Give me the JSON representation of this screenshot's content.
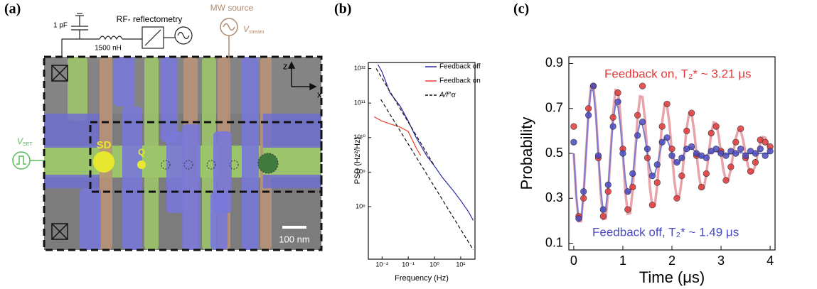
{
  "panel_labels": [
    "(a)",
    "(b)",
    "(c)"
  ],
  "panel_a": {
    "capacitor": "1 pF",
    "rf": "RF- reflectometry",
    "inductor": "1500 nH",
    "mw": "MW source",
    "v_stream": {
      "symbol": "V",
      "subscript": "stream"
    },
    "v_set": {
      "symbol": "V",
      "subscript": "SET"
    },
    "sd": "SD",
    "q": "Q",
    "axis_z": "z",
    "axis_x": "x",
    "scale": "100 nm"
  },
  "chart_data": [
    {
      "type": "line",
      "xscale": "log",
      "yscale": "log",
      "xlabel": "Frequency (Hz)",
      "ylabel": "PSD (Hz²/Hz)",
      "legend": "upper right",
      "xlim": [
        0.003,
        35
      ],
      "ylim": [
        3000000,
        1500000000000
      ],
      "xticks": [
        {
          "value": 0.01,
          "label": "10⁻²"
        },
        {
          "value": 0.1,
          "label": "10⁻¹"
        },
        {
          "value": 1,
          "label": "10⁰"
        },
        {
          "value": 10,
          "label": "10¹"
        }
      ],
      "yticks": [
        {
          "value": 100000000,
          "label": "10⁸"
        },
        {
          "value": 1000000000,
          "label": "10⁹"
        },
        {
          "value": 10000000000,
          "label": "10¹⁰"
        },
        {
          "value": 100000000000,
          "label": "10¹¹"
        },
        {
          "value": 1000000000000,
          "label": "10¹²"
        }
      ],
      "series": [
        {
          "name": "Feedback off",
          "color": "#2a2aa8",
          "x": [
            0.007,
            0.01,
            0.02,
            0.05,
            0.1,
            0.2,
            0.5,
            1,
            2,
            5,
            10,
            20,
            30
          ],
          "values": [
            1300000000000,
            800000000000,
            200000000000,
            80000000000,
            30000000000,
            10000000000,
            3000000000,
            1500000000,
            700000000,
            300000000,
            150000000,
            70000000,
            40000000
          ]
        },
        {
          "name": "Feedback on",
          "color": "#e8402a",
          "x": [
            0.005,
            0.01,
            0.02,
            0.05,
            0.1,
            0.2,
            0.3
          ],
          "values": [
            40000000000,
            30000000000,
            25000000000,
            20000000000,
            15000000000,
            5000000000,
            3000000000
          ]
        },
        {
          "name": "A/f^α",
          "color": "#111111",
          "dash": true,
          "x": [
            0.009,
            30
          ],
          "values": [
            127000000000,
            5600000
          ]
        },
        {
          "color": "#111111",
          "dash": true,
          "x": [
            0.006,
            1
          ],
          "values": [
            1000000000000,
            1500000000
          ]
        }
      ]
    },
    {
      "type": "line",
      "xlabel": "Time (μs)",
      "ylabel": "Probability",
      "xlim": [
        -0.1,
        4.1
      ],
      "ylim": [
        0.07,
        0.93
      ],
      "xticks": [
        0,
        1,
        2,
        3,
        4
      ],
      "yticks": [
        0.1,
        0.3,
        0.5,
        0.7,
        0.9
      ],
      "series": [
        {
          "name": "Feedback on, T₂* ~ 3.21 μs",
          "mode": "line",
          "color": "#e8a3ab",
          "x": [
            0,
            0.05,
            0.1,
            0.15,
            0.2,
            0.25,
            0.3,
            0.35,
            0.4,
            0.45,
            0.5,
            0.55,
            0.6,
            0.65,
            0.7,
            0.75,
            0.8,
            0.85,
            0.9,
            0.95,
            1,
            1.05,
            1.1,
            1.15,
            1.2,
            1.25,
            1.3,
            1.35,
            1.4,
            1.45,
            1.5,
            1.55,
            1.6,
            1.65,
            1.7,
            1.75,
            1.8,
            1.85,
            1.9,
            1.95,
            2,
            2.05,
            2.1,
            2.15,
            2.2,
            2.25,
            2.3,
            2.35,
            2.4,
            2.45,
            2.5,
            2.55,
            2.6,
            2.65,
            2.7,
            2.75,
            2.8,
            2.85,
            2.9,
            2.95,
            3,
            3.05,
            3.1,
            3.15,
            3.2,
            3.25,
            3.3,
            3.35,
            3.4,
            3.45,
            3.5,
            3.55,
            3.6,
            3.65,
            3.7,
            3.75,
            3.8,
            3.85,
            3.9,
            3.95,
            4
          ],
          "values": [
            0.5,
            0.312,
            0.198,
            0.198,
            0.314,
            0.5,
            0.685,
            0.799,
            0.798,
            0.684,
            0.5,
            0.318,
            0.207,
            0.21,
            0.322,
            0.5,
            0.676,
            0.782,
            0.78,
            0.672,
            0.5,
            0.331,
            0.231,
            0.234,
            0.337,
            0.5,
            0.659,
            0.754,
            0.751,
            0.653,
            0.5,
            0.351,
            0.263,
            0.267,
            0.358,
            0.5,
            0.637,
            0.718,
            0.714,
            0.63,
            0.5,
            0.375,
            0.302,
            0.306,
            0.382,
            0.5,
            0.612,
            0.678,
            0.674,
            0.605,
            0.5,
            0.4,
            0.342,
            0.346,
            0.407,
            0.5,
            0.588,
            0.638,
            0.634,
            0.581,
            0.5,
            0.424,
            0.38,
            0.383,
            0.43,
            0.5,
            0.566,
            0.604,
            0.6,
            0.56,
            0.5,
            0.444,
            0.413,
            0.415,
            0.449,
            0.5,
            0.547,
            0.573,
            0.57,
            0.542,
            0.5
          ]
        },
        {
          "name": "Feedback off, T₂* ~ 1.49 μs",
          "mode": "line",
          "color": "#7b7bd0",
          "x": [
            0,
            0.05,
            0.1,
            0.15,
            0.2,
            0.25,
            0.3,
            0.35,
            0.4,
            0.45,
            0.5,
            0.55,
            0.6,
            0.65,
            0.7,
            0.75,
            0.8,
            0.85,
            0.9,
            0.95,
            1,
            1.05,
            1.1,
            1.15,
            1.2,
            1.25,
            1.3,
            1.35,
            1.4,
            1.45,
            1.5,
            1.55,
            1.6,
            1.65,
            1.7,
            1.75,
            1.8,
            1.85,
            1.9,
            1.95,
            2,
            2.05,
            2.1,
            2.15,
            2.2,
            2.25,
            2.3,
            2.35,
            2.4,
            2.45,
            2.5,
            2.55,
            2.6,
            2.65,
            2.7,
            2.75,
            2.8,
            2.85,
            2.9,
            2.95,
            3,
            3.05,
            3.1,
            3.15,
            3.2,
            3.25,
            3.3,
            3.35,
            3.4,
            3.45,
            3.5,
            3.55,
            3.6,
            3.65,
            3.7,
            3.75,
            3.8,
            3.85,
            3.9,
            3.95,
            4
          ],
          "values": [
            0.5,
            0.314,
            0.202,
            0.205,
            0.32,
            0.5,
            0.676,
            0.782,
            0.779,
            0.67,
            0.5,
            0.337,
            0.243,
            0.252,
            0.351,
            0.5,
            0.639,
            0.718,
            0.709,
            0.625,
            0.5,
            0.385,
            0.323,
            0.331,
            0.401,
            0.5,
            0.589,
            0.635,
            0.627,
            0.573,
            0.5,
            0.435,
            0.402,
            0.408,
            0.446,
            0.5,
            0.546,
            0.568,
            0.563,
            0.535,
            0.5,
            0.471,
            0.456,
            0.459,
            0.477,
            0.5,
            0.519,
            0.528,
            0.525,
            0.513,
            0.5,
            0.489,
            0.485,
            0.486,
            0.492,
            0.5,
            0.506,
            0.509,
            0.508,
            0.504,
            0.5,
            0.496,
            0.496,
            0.496,
            0.498,
            0.5,
            0.502,
            0.503,
            0.503,
            0.501,
            0.5,
            0.5,
            0.5,
            0.5,
            0.5,
            0.5,
            0.5,
            0.5,
            0.5,
            0.5,
            0.5
          ]
        },
        {
          "mode": "markers",
          "color": "#e03a3a",
          "x": [
            0,
            0.1,
            0.2,
            0.3,
            0.4,
            0.5,
            0.6,
            0.7,
            0.8,
            0.9,
            1,
            1.1,
            1.2,
            1.3,
            1.4,
            1.5,
            1.6,
            1.7,
            1.8,
            1.9,
            2,
            2.1,
            2.2,
            2.3,
            2.4,
            2.5,
            2.6,
            2.7,
            2.8,
            2.9,
            3,
            3.1,
            3.2,
            3.3,
            3.4,
            3.5,
            3.6,
            3.7,
            3.8,
            3.9,
            4
          ],
          "values": [
            0.62,
            0.22,
            0.3,
            0.7,
            0.8,
            0.48,
            0.22,
            0.33,
            0.66,
            0.77,
            0.52,
            0.25,
            0.35,
            0.67,
            0.8,
            0.48,
            0.27,
            0.37,
            0.62,
            0.72,
            0.52,
            0.3,
            0.4,
            0.6,
            0.68,
            0.49,
            0.35,
            0.41,
            0.59,
            0.62,
            0.51,
            0.38,
            0.44,
            0.55,
            0.61,
            0.48,
            0.42,
            0.46,
            0.56,
            0.55,
            0.53
          ]
        },
        {
          "mode": "markers",
          "color": "#4a4ac4",
          "x": [
            0,
            0.1,
            0.2,
            0.3,
            0.4,
            0.5,
            0.6,
            0.7,
            0.8,
            0.9,
            1,
            1.1,
            1.2,
            1.3,
            1.4,
            1.5,
            1.6,
            1.7,
            1.8,
            1.9,
            2,
            2.1,
            2.2,
            2.3,
            2.4,
            2.5,
            2.6,
            2.7,
            2.8,
            2.9,
            3,
            3.1,
            3.2,
            3.3,
            3.4,
            3.5,
            3.6,
            3.7,
            3.8,
            3.9,
            4
          ],
          "values": [
            0.55,
            0.21,
            0.33,
            0.67,
            0.8,
            0.49,
            0.25,
            0.36,
            0.62,
            0.73,
            0.5,
            0.33,
            0.41,
            0.58,
            0.64,
            0.52,
            0.4,
            0.45,
            0.55,
            0.57,
            0.49,
            0.46,
            0.48,
            0.52,
            0.53,
            0.5,
            0.49,
            0.48,
            0.51,
            0.52,
            0.5,
            0.49,
            0.51,
            0.5,
            0.52,
            0.49,
            0.51,
            0.5,
            0.52,
            0.49,
            0.51
          ]
        }
      ]
    }
  ]
}
